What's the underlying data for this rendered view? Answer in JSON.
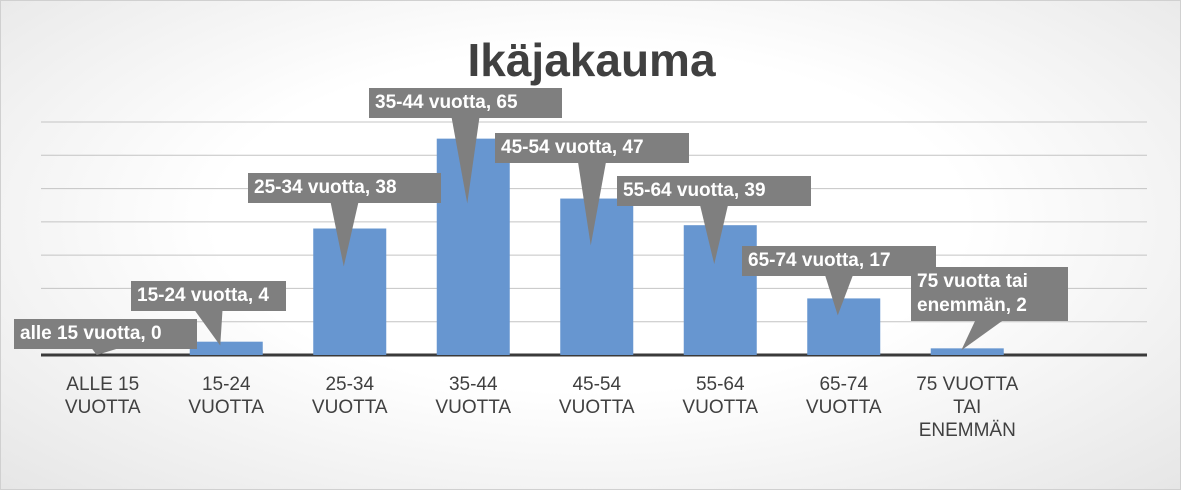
{
  "chart_data": {
    "type": "bar",
    "title": "Ikäjakauma",
    "categories": [
      "ALLE 15 VUOTTA",
      "15-24 VUOTTA",
      "25-34 VUOTTA",
      "35-44 VUOTTA",
      "45-54 VUOTTA",
      "55-64 VUOTTA",
      "65-74 VUOTTA",
      "75 VUOTTA TAI ENEMMÄN"
    ],
    "values": [
      0,
      4,
      38,
      65,
      47,
      39,
      17,
      2
    ],
    "value_labels": [
      "alle 15 vuotta, 0",
      "15-24 vuotta, 4",
      "25-34 vuotta, 38",
      "35-44 vuotta, 65",
      "45-54 vuotta, 47",
      "55-64 vuotta, 39",
      "65-74 vuotta, 17",
      "75 vuotta tai enemmän, 2"
    ],
    "color": "#6796d0",
    "ylim": [
      0,
      70
    ],
    "yticks": [
      0,
      10,
      20,
      30,
      40,
      50,
      60,
      70
    ],
    "grid": true
  }
}
